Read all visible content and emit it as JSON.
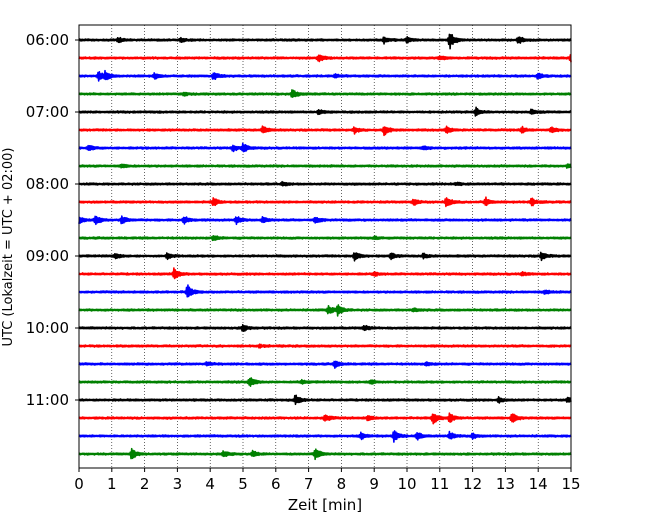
{
  "chart_data": {
    "type": "line",
    "subtype": "helicorder-seismogram",
    "xlabel": "Zeit  [min]",
    "ylabel": "UTC (Lokalzeit = UTC + 02:00)",
    "xlim": [
      0,
      15
    ],
    "x_ticks": [
      "0",
      "1",
      "2",
      "3",
      "4",
      "5",
      "6",
      "7",
      "8",
      "9",
      "10",
      "11",
      "12",
      "13",
      "14",
      "15"
    ],
    "y_ticks": [
      "06:00",
      "07:00",
      "08:00",
      "09:00",
      "10:00",
      "11:00"
    ],
    "vertical_grid": "dotted, every minute",
    "trace_color_cycle": [
      "#000000",
      "#ff0000",
      "#0000ff",
      "#008000"
    ],
    "traces": [
      {
        "start": "06:00",
        "events": [
          [
            1.2,
            0.25
          ],
          [
            3.1,
            0.2
          ],
          [
            9.3,
            0.35
          ],
          [
            10.0,
            0.3
          ],
          [
            11.3,
            1.0
          ],
          [
            13.4,
            0.45
          ]
        ]
      },
      {
        "start": "06:15",
        "events": [
          [
            7.3,
            0.4
          ],
          [
            15.0,
            0.45
          ],
          [
            11.0,
            0.2
          ]
        ]
      },
      {
        "start": "06:30",
        "events": [
          [
            0.6,
            0.55
          ],
          [
            0.8,
            0.4
          ],
          [
            2.3,
            0.3
          ],
          [
            4.1,
            0.45
          ],
          [
            7.8,
            0.2
          ],
          [
            14.0,
            0.35
          ]
        ]
      },
      {
        "start": "06:45",
        "events": [
          [
            6.5,
            0.55
          ],
          [
            3.2,
            0.15
          ]
        ]
      },
      {
        "start": "07:00",
        "events": [
          [
            7.3,
            0.3
          ],
          [
            12.1,
            0.45
          ],
          [
            13.8,
            0.3
          ]
        ]
      },
      {
        "start": "07:15",
        "events": [
          [
            5.6,
            0.4
          ],
          [
            8.4,
            0.35
          ],
          [
            9.3,
            0.55
          ],
          [
            11.2,
            0.35
          ],
          [
            13.5,
            0.35
          ],
          [
            14.4,
            0.3
          ]
        ]
      },
      {
        "start": "07:30",
        "events": [
          [
            0.3,
            0.3
          ],
          [
            5.0,
            0.5
          ],
          [
            4.7,
            0.35
          ],
          [
            10.5,
            0.2
          ]
        ]
      },
      {
        "start": "07:45",
        "events": [
          [
            1.3,
            0.2
          ],
          [
            14.9,
            0.2
          ]
        ]
      },
      {
        "start": "08:00",
        "events": [
          [
            6.2,
            0.2
          ],
          [
            11.5,
            0.15
          ]
        ]
      },
      {
        "start": "08:15",
        "events": [
          [
            4.1,
            0.45
          ],
          [
            11.2,
            0.6
          ],
          [
            12.4,
            0.45
          ],
          [
            13.8,
            0.4
          ],
          [
            10.2,
            0.35
          ]
        ]
      },
      {
        "start": "08:30",
        "events": [
          [
            0.5,
            0.55
          ],
          [
            1.3,
            0.45
          ],
          [
            3.2,
            0.45
          ],
          [
            4.8,
            0.4
          ],
          [
            5.6,
            0.35
          ],
          [
            7.2,
            0.4
          ],
          [
            0.0,
            0.35
          ]
        ]
      },
      {
        "start": "08:45",
        "events": [
          [
            4.1,
            0.3
          ],
          [
            9.0,
            0.15
          ]
        ]
      },
      {
        "start": "09:00",
        "events": [
          [
            1.1,
            0.3
          ],
          [
            2.7,
            0.35
          ],
          [
            8.4,
            0.55
          ],
          [
            9.5,
            0.35
          ],
          [
            14.1,
            0.45
          ],
          [
            10.5,
            0.25
          ]
        ]
      },
      {
        "start": "09:15",
        "events": [
          [
            2.9,
            0.6
          ],
          [
            9.0,
            0.2
          ],
          [
            13.5,
            0.2
          ]
        ]
      },
      {
        "start": "09:30",
        "events": [
          [
            3.3,
            0.85
          ],
          [
            14.2,
            0.2
          ]
        ]
      },
      {
        "start": "09:45",
        "events": [
          [
            7.6,
            0.55
          ],
          [
            7.9,
            0.6
          ],
          [
            10.2,
            0.2
          ]
        ]
      },
      {
        "start": "10:00",
        "events": [
          [
            5.0,
            0.4
          ],
          [
            8.7,
            0.3
          ]
        ]
      },
      {
        "start": "10:15",
        "events": [
          [
            5.5,
            0.15
          ]
        ]
      },
      {
        "start": "10:30",
        "events": [
          [
            3.9,
            0.2
          ],
          [
            7.8,
            0.4
          ],
          [
            10.6,
            0.2
          ]
        ]
      },
      {
        "start": "10:45",
        "events": [
          [
            5.2,
            0.55
          ],
          [
            6.8,
            0.2
          ],
          [
            8.9,
            0.25
          ]
        ]
      },
      {
        "start": "11:00",
        "events": [
          [
            6.6,
            0.55
          ],
          [
            12.8,
            0.3
          ],
          [
            14.9,
            0.3
          ]
        ]
      },
      {
        "start": "11:15",
        "events": [
          [
            7.5,
            0.45
          ],
          [
            10.8,
            0.7
          ],
          [
            11.3,
            0.55
          ],
          [
            13.2,
            0.55
          ],
          [
            8.8,
            0.25
          ]
        ]
      },
      {
        "start": "11:30",
        "events": [
          [
            9.6,
            0.6
          ],
          [
            10.3,
            0.45
          ],
          [
            11.3,
            0.45
          ],
          [
            8.6,
            0.35
          ],
          [
            12.0,
            0.3
          ]
        ]
      },
      {
        "start": "11:45",
        "events": [
          [
            1.6,
            0.6
          ],
          [
            4.4,
            0.35
          ],
          [
            7.2,
            0.6
          ],
          [
            5.3,
            0.3
          ]
        ]
      }
    ]
  }
}
